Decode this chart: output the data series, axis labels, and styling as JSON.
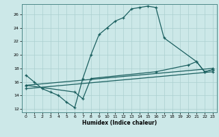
{
  "xlabel": "Humidex (Indice chaleur)",
  "xlim": [
    -0.5,
    23.5
  ],
  "ylim": [
    11.5,
    27.5
  ],
  "xticks": [
    0,
    1,
    2,
    3,
    4,
    5,
    6,
    7,
    8,
    9,
    10,
    11,
    12,
    13,
    14,
    15,
    16,
    17,
    18,
    19,
    20,
    21,
    22,
    23
  ],
  "yticks": [
    12,
    14,
    16,
    18,
    20,
    22,
    24,
    26
  ],
  "background_color": "#cce8e8",
  "grid_color": "#aacfcf",
  "line_color": "#1a5f5f",
  "line1_x": [
    0,
    1,
    2,
    3,
    4,
    5,
    6,
    7,
    8,
    9,
    10,
    11,
    12,
    13,
    14,
    15,
    16,
    17,
    21,
    22,
    23
  ],
  "line1_y": [
    17.0,
    16.0,
    15.0,
    14.5,
    14.0,
    13.0,
    12.2,
    16.5,
    20.0,
    23.0,
    24.0,
    25.0,
    25.5,
    26.8,
    27.0,
    27.2,
    27.0,
    22.5,
    19.0,
    17.5,
    17.8
  ],
  "line2_x": [
    0,
    6,
    7,
    8,
    16,
    20,
    21,
    22,
    23
  ],
  "line2_y": [
    15.5,
    14.5,
    13.5,
    16.5,
    17.5,
    18.5,
    19.0,
    17.5,
    17.8
  ],
  "line3_x": [
    0,
    23
  ],
  "line3_y": [
    15.5,
    18.0
  ],
  "line4_x": [
    0,
    23
  ],
  "line4_y": [
    15.0,
    17.5
  ]
}
